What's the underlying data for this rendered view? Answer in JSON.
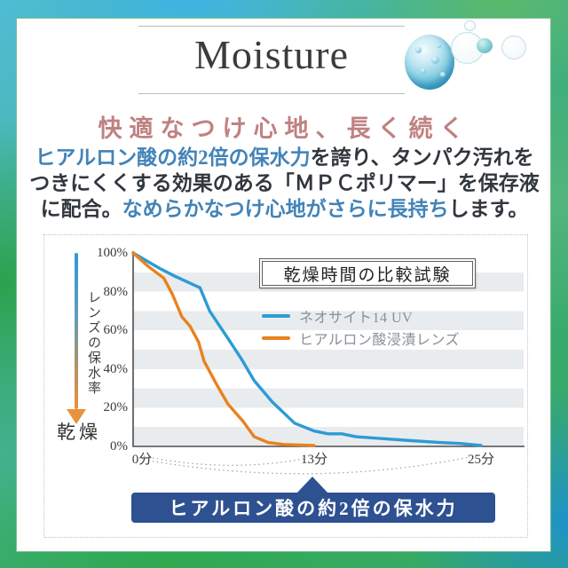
{
  "colors": {
    "accent_blue_text": "#4283b8",
    "dark_text": "#32363e",
    "subtitle_pink": "#c08181",
    "banner_bg": "#2e5191",
    "banner_text": "#ffffff",
    "series_blue": "#2d9bd5",
    "series_orange": "#e8821e",
    "stripe_gray": "#e9ecee"
  },
  "icons": {
    "bubbles": "water-droplet-bubbles"
  },
  "header": {
    "title": "Moisture"
  },
  "subtitle": "快適なつけ心地、長く続く",
  "body": {
    "l1_blue": "ヒアルロン酸の約2倍の保水力",
    "l1_dark": "を誇り、タンパク汚れを",
    "l2_dark": "つきにくくする効果のある「ＭＰＣポリマー」を保存液",
    "l3_dark1": "に配合。",
    "l3_blue": "なめらかなつけ心地がさらに長持ち",
    "l3_dark2": "します。"
  },
  "chart_data": {
    "type": "line",
    "title": "乾燥時間の比較試験",
    "ylabel": "レンズの保水率",
    "ylabel_arrow_end": "乾燥",
    "xlabel": "",
    "x_unit": "分",
    "xlim": [
      0,
      25
    ],
    "ylim": [
      0,
      100
    ],
    "grid": "horizontal 10% stripe bands",
    "legend_position": "inside center-right",
    "ytick_labels": [
      "100%",
      "80%",
      "60%",
      "40%",
      "20%",
      "0%"
    ],
    "xticks": [
      {
        "value": 0,
        "label": "0分"
      },
      {
        "value": 13,
        "label": "13分"
      },
      {
        "value": 25,
        "label": "25分"
      }
    ],
    "series": [
      {
        "name": "ネオサイト14 UV",
        "color": "#2d9bd5",
        "points": [
          [
            0,
            100
          ],
          [
            1.9,
            92
          ],
          [
            3,
            88
          ],
          [
            4.8,
            82
          ],
          [
            5.5,
            70
          ],
          [
            6.8,
            56
          ],
          [
            7.8,
            45
          ],
          [
            8.7,
            34
          ],
          [
            10,
            23
          ],
          [
            11.6,
            12
          ],
          [
            13,
            8
          ],
          [
            14,
            6.5
          ],
          [
            15,
            6.5
          ],
          [
            16,
            5
          ],
          [
            18,
            4
          ],
          [
            20,
            3
          ],
          [
            22,
            2
          ],
          [
            23.5,
            1.5
          ],
          [
            25,
            0.5
          ]
        ]
      },
      {
        "name": "ヒアルロン酸浸漬レンズ",
        "color": "#e8821e",
        "points": [
          [
            0,
            100
          ],
          [
            1.1,
            93
          ],
          [
            2.2,
            87
          ],
          [
            2.8,
            79
          ],
          [
            3.5,
            67
          ],
          [
            4.1,
            62
          ],
          [
            4.7,
            54
          ],
          [
            5.1,
            44
          ],
          [
            6,
            32
          ],
          [
            6.8,
            22
          ],
          [
            7.9,
            13
          ],
          [
            8.7,
            5
          ],
          [
            9.7,
            2
          ],
          [
            10.8,
            1
          ],
          [
            13,
            0.5
          ]
        ]
      }
    ],
    "annotation": "ヒアルロン酸の約2倍の保水力"
  },
  "banner": {
    "label": "ヒアルロン酸の約2倍の保水力"
  }
}
